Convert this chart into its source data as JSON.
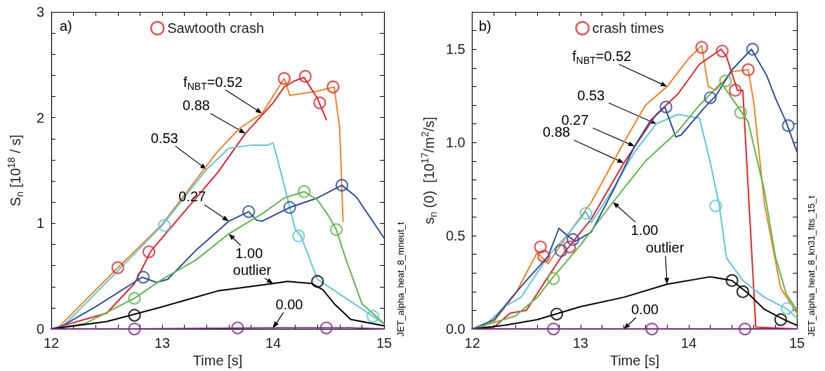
{
  "chart_data": [
    {
      "type": "line",
      "xlabel": "Time [s]",
      "ylabel": "S$_{n}$ [10$^{18}$ / s]",
      "xlim": [
        12,
        15
      ],
      "ylim": [
        0,
        3
      ],
      "xticks": [
        12,
        {
          "value": 12.2,
          "label": null
        },
        {
          "value": 12.4,
          "label": null
        },
        {
          "value": 12.6,
          "label": null
        },
        {
          "value": 12.8,
          "label": null
        },
        13,
        {
          "value": 13.2,
          "label": null
        },
        {
          "value": 13.4,
          "label": null
        },
        {
          "value": 13.6,
          "label": null
        },
        {
          "value": 13.8,
          "label": null
        },
        14,
        {
          "value": 14.2,
          "label": null
        },
        {
          "value": 14.4,
          "label": null
        },
        {
          "value": 14.6,
          "label": null
        },
        {
          "value": 14.8,
          "label": null
        },
        15
      ],
      "yticks": [
        0,
        {
          "value": 0.2,
          "label": null
        },
        {
          "value": 0.4,
          "label": null
        },
        {
          "value": 0.6,
          "label": null
        },
        {
          "value": 0.8,
          "label": null
        },
        1,
        {
          "value": 1.2,
          "label": null
        },
        {
          "value": 1.4,
          "label": null
        },
        {
          "value": 1.6,
          "label": null
        },
        {
          "value": 1.8,
          "label": null
        },
        2,
        {
          "value": 2.2,
          "label": null
        },
        {
          "value": 2.4,
          "label": null
        },
        {
          "value": 2.6,
          "label": null
        },
        {
          "value": 2.8,
          "label": null
        },
        3
      ],
      "legend": "top",
      "series": [
        {
          "type": "line",
          "color": "#f58220",
          "x": [
            12.05,
            12.6,
            13.0,
            13.5,
            13.7,
            13.9,
            14.1,
            14.15,
            14.4,
            14.55,
            14.6,
            14.63
          ],
          "values": [
            0,
            0.58,
            0.99,
            1.68,
            1.9,
            2.04,
            2.37,
            2.21,
            2.25,
            2.29,
            1.9,
            1.02
          ]
        },
        {
          "type": "line",
          "color": "#e8232a",
          "x": [
            12.0,
            12.5,
            12.75,
            12.9,
            13.2,
            13.5,
            13.75,
            14.0,
            14.1,
            14.2,
            14.28,
            14.4,
            14.48
          ],
          "values": [
            0,
            0.15,
            0.43,
            0.74,
            1.11,
            1.48,
            1.85,
            2.14,
            2.29,
            2.35,
            2.38,
            2.18,
            1.98
          ]
        },
        {
          "type": "line",
          "color": "#5bc8dc",
          "x": [
            12.1,
            12.6,
            13.0,
            13.4,
            13.6,
            13.8,
            13.95,
            14.0,
            14.1,
            14.2,
            14.25,
            14.4,
            14.7,
            14.9,
            15.0
          ],
          "values": [
            0.02,
            0.55,
            0.98,
            1.51,
            1.71,
            1.74,
            1.74,
            1.76,
            1.36,
            0.94,
            0.88,
            0.47,
            0.26,
            0.12,
            0.05
          ]
        },
        {
          "type": "line",
          "color": "#2b4ea2",
          "x": [
            12.05,
            12.4,
            12.82,
            12.95,
            13.05,
            13.3,
            13.6,
            13.78,
            13.85,
            13.9,
            14.15,
            14.4,
            14.62,
            14.75,
            15.0
          ],
          "values": [
            0,
            0.21,
            0.49,
            0.44,
            0.47,
            0.74,
            1.02,
            1.11,
            1.03,
            1.02,
            1.15,
            1.24,
            1.36,
            1.25,
            0.86
          ]
        },
        {
          "type": "line",
          "color": "#5cb947",
          "x": [
            12.0,
            12.3,
            12.75,
            13.0,
            13.3,
            13.6,
            13.9,
            14.1,
            14.28,
            14.4,
            14.5,
            14.57,
            14.65,
            14.8,
            15.0
          ],
          "values": [
            0,
            0.05,
            0.29,
            0.47,
            0.65,
            0.9,
            1.09,
            1.24,
            1.3,
            1.22,
            1.07,
            0.94,
            0.68,
            0.24,
            0.05
          ]
        },
        {
          "type": "line",
          "color": "#000000",
          "x": [
            12.0,
            12.5,
            12.75,
            13.0,
            13.5,
            14.0,
            14.13,
            14.35,
            14.45,
            14.55,
            14.7,
            15.0
          ],
          "values": [
            0,
            0.07,
            0.14,
            0.21,
            0.36,
            0.43,
            0.45,
            0.43,
            0.37,
            0.24,
            0.09,
            0.03
          ]
        },
        {
          "type": "line",
          "color": "#7b2a8a",
          "x": [
            12.0,
            12.7,
            14.0,
            14.7,
            15.0
          ],
          "values": [
            0,
            0,
            0.01,
            0.01,
            0
          ]
        },
        {
          "type": "scatter",
          "marker": "circle",
          "name": "Sawtooth crash",
          "color": "#e8232a",
          "x": [
            12.6,
            12.88,
            14.1,
            14.29,
            14.42,
            14.54
          ],
          "values": [
            0.58,
            0.73,
            2.37,
            2.39,
            2.14,
            2.29
          ]
        },
        {
          "type": "scatter",
          "marker": "circle",
          "color": "#5bc8dc",
          "x": [
            13.02,
            14.23,
            14.9
          ],
          "values": [
            0.98,
            0.88,
            0.12
          ]
        },
        {
          "type": "scatter",
          "marker": "circle",
          "color": "#2b4ea2",
          "x": [
            12.83,
            13.78,
            14.15,
            14.62
          ],
          "values": [
            0.49,
            1.11,
            1.15,
            1.36
          ]
        },
        {
          "type": "scatter",
          "marker": "circle",
          "color": "#5cb947",
          "x": [
            12.75,
            14.28,
            14.57
          ],
          "values": [
            0.29,
            1.3,
            0.94
          ]
        },
        {
          "type": "scatter",
          "marker": "circle",
          "color": "#000000",
          "x": [
            12.75,
            14.4
          ],
          "values": [
            0.13,
            0.45
          ]
        },
        {
          "type": "scatter",
          "marker": "circle",
          "color": "#7b2a8a",
          "x": [
            12.75,
            13.68,
            14.48
          ],
          "values": [
            0,
            0.01,
            0.01
          ]
        }
      ],
      "annotations": [
        "a)",
        "JET_alpha_heat_8_mneut_t",
        {
          "text": "f$_{NBT}$=0.52",
          "x": 13.9,
          "y": 2.04
        },
        {
          "text": "0.88",
          "x": 13.75,
          "y": 1.85
        },
        {
          "text": "0.53",
          "x": 13.4,
          "y": 1.51
        },
        {
          "text": "0.27",
          "x": 13.6,
          "y": 1.02
        },
        {
          "text": "1.00",
          "x": 13.6,
          "y": 0.9
        },
        {
          "text": "outlier",
          "x": 14.0,
          "y": 0.43
        },
        {
          "text": "0.00",
          "x": 14.0,
          "y": 0.01
        }
      ]
    },
    {
      "type": "line",
      "xlabel": "Time [s]",
      "ylabel": "s$_{n}$ (0)  [10$^{17}$/m$^{2}$/s]",
      "xlim": [
        12,
        15
      ],
      "ylim": [
        0,
        1.7
      ],
      "xticks": [
        12,
        {
          "value": 12.2,
          "label": null
        },
        {
          "value": 12.4,
          "label": null
        },
        {
          "value": 12.6,
          "label": null
        },
        {
          "value": 12.8,
          "label": null
        },
        13,
        {
          "value": 13.2,
          "label": null
        },
        {
          "value": 13.4,
          "label": null
        },
        {
          "value": 13.6,
          "label": null
        },
        {
          "value": 13.8,
          "label": null
        },
        14,
        {
          "value": 14.2,
          "label": null
        },
        {
          "value": 14.4,
          "label": null
        },
        {
          "value": 14.6,
          "label": null
        },
        {
          "value": 14.8,
          "label": null
        },
        15
      ],
      "yticks": [
        {
          "value": 0,
          "label": "0.0"
        },
        {
          "value": 0.1,
          "label": null
        },
        {
          "value": 0.2,
          "label": null
        },
        {
          "value": 0.3,
          "label": null
        },
        {
          "value": 0.4,
          "label": null
        },
        0.5,
        {
          "value": 0.6,
          "label": null
        },
        {
          "value": 0.7,
          "label": null
        },
        {
          "value": 0.8,
          "label": null
        },
        {
          "value": 0.9,
          "label": null
        },
        {
          "value": 1,
          "label": "1.0"
        },
        {
          "value": 1.1,
          "label": null
        },
        {
          "value": 1.2,
          "label": null
        },
        {
          "value": 1.3,
          "label": null
        },
        {
          "value": 1.4,
          "label": null
        },
        1.5,
        {
          "value": 1.6,
          "label": null
        },
        {
          "value": 1.7,
          "label": null
        }
      ],
      "legend": "top",
      "series": [
        {
          "type": "line",
          "color": "#f58220",
          "x": [
            12.0,
            12.2,
            12.4,
            12.6,
            12.7,
            12.9,
            13.1,
            13.4,
            13.6,
            13.8,
            14.0,
            14.12,
            14.18,
            14.25,
            14.4,
            14.55,
            14.6,
            14.7,
            14.85,
            15.0
          ],
          "values": [
            0,
            0.04,
            0.19,
            0.41,
            0.35,
            0.52,
            0.68,
            1.0,
            1.2,
            1.3,
            1.45,
            1.52,
            1.3,
            1.28,
            1.38,
            1.39,
            1.22,
            0.67,
            0.22,
            0.085
          ]
        },
        {
          "type": "line",
          "color": "#e8232a",
          "x": [
            12.0,
            12.2,
            12.35,
            12.5,
            12.7,
            12.85,
            13.1,
            13.4,
            13.7,
            13.9,
            14.1,
            14.3,
            14.35,
            14.45,
            14.5,
            14.62,
            15.0
          ],
          "values": [
            0,
            0.01,
            0.085,
            0.1,
            0.28,
            0.41,
            0.59,
            0.89,
            1.15,
            1.26,
            1.42,
            1.5,
            1.46,
            1.28,
            1.28,
            0.01,
            0
          ]
        },
        {
          "type": "line",
          "color": "#5bc8dc",
          "x": [
            12.1,
            12.3,
            12.45,
            12.7,
            12.9,
            13.05,
            13.1,
            13.3,
            13.5,
            13.7,
            13.9,
            14.1,
            14.2,
            14.28,
            14.35,
            14.5,
            14.7,
            14.9,
            15.0
          ],
          "values": [
            0.01,
            0.12,
            0.17,
            0.39,
            0.52,
            0.63,
            0.57,
            0.75,
            0.95,
            1.1,
            1.15,
            1.13,
            0.89,
            0.67,
            0.38,
            0.26,
            0.17,
            0.11,
            0.06
          ]
        },
        {
          "type": "line",
          "color": "#2b4ea2",
          "x": [
            12.0,
            12.2,
            12.35,
            12.5,
            12.7,
            12.8,
            12.88,
            12.95,
            13.1,
            13.3,
            13.5,
            13.65,
            13.78,
            13.88,
            13.93,
            14.15,
            14.25,
            14.4,
            14.58,
            14.72,
            14.8,
            14.9,
            15.0
          ],
          "values": [
            0,
            0.05,
            0.16,
            0.26,
            0.39,
            0.54,
            0.5,
            0.47,
            0.52,
            0.74,
            0.98,
            1.12,
            1.19,
            1.03,
            1.04,
            1.19,
            1.25,
            1.39,
            1.5,
            1.36,
            1.24,
            1.11,
            0.95
          ]
        },
        {
          "type": "line",
          "color": "#5cb947",
          "x": [
            12.0,
            12.4,
            12.6,
            12.75,
            13.0,
            13.3,
            13.6,
            13.9,
            14.1,
            14.3,
            14.42,
            14.55,
            14.7,
            14.8,
            14.9,
            15.0
          ],
          "values": [
            0,
            0.07,
            0.17,
            0.28,
            0.45,
            0.68,
            0.9,
            1.06,
            1.2,
            1.32,
            1.22,
            1.11,
            0.74,
            0.39,
            0.19,
            0.1
          ]
        },
        {
          "type": "line",
          "color": "#000000",
          "x": [
            12.0,
            12.3,
            12.6,
            12.8,
            13.0,
            13.4,
            13.8,
            14.2,
            14.4,
            14.55,
            14.7,
            14.9,
            15.0
          ],
          "values": [
            0,
            0.02,
            0.05,
            0.085,
            0.12,
            0.17,
            0.24,
            0.28,
            0.26,
            0.19,
            0.105,
            0.045,
            0.02
          ]
        },
        {
          "type": "line",
          "color": "#7b2a8a",
          "x": [
            12.0,
            15.0
          ],
          "values": [
            0,
            0
          ]
        },
        {
          "type": "scatter",
          "marker": "circle",
          "name": "crash times",
          "color": "#e8232a",
          "x": [
            12.63,
            12.66,
            12.9,
            14.12,
            14.31,
            14.43,
            14.55
          ],
          "values": [
            0.44,
            0.39,
            0.44,
            1.51,
            1.49,
            1.28,
            1.39
          ]
        },
        {
          "type": "scatter",
          "marker": "circle",
          "color": "#2b4ea2",
          "x": [
            12.82,
            12.93,
            13.79,
            14.2,
            14.59,
            14.92
          ],
          "values": [
            0.42,
            0.48,
            1.19,
            1.24,
            1.5,
            1.09
          ]
        },
        {
          "type": "scatter",
          "marker": "circle",
          "color": "#5bc8dc",
          "x": [
            13.05,
            14.25,
            14.91
          ],
          "values": [
            0.62,
            0.66,
            0.11
          ]
        },
        {
          "type": "scatter",
          "marker": "circle",
          "color": "#5cb947",
          "x": [
            12.75,
            14.34,
            14.48
          ],
          "values": [
            0.27,
            1.33,
            1.16
          ]
        },
        {
          "type": "scatter",
          "marker": "circle",
          "color": "#000000",
          "x": [
            12.78,
            14.4,
            14.5,
            14.85
          ],
          "values": [
            0.08,
            0.26,
            0.2,
            0.05
          ]
        },
        {
          "type": "scatter",
          "marker": "circle",
          "color": "#7b2a8a",
          "x": [
            12.75,
            13.66,
            14.52
          ],
          "values": [
            0,
            0,
            0
          ]
        }
      ],
      "annotations": [
        "b)",
        "JET_alpha_heat_8_kn31_fits_15_t",
        {
          "text": "f$_{NBT}$=0.52",
          "x": 13.8,
          "y": 1.3
        },
        {
          "text": "0.53",
          "x": 13.7,
          "y": 1.1
        },
        {
          "text": "0.27",
          "x": 13.5,
          "y": 0.98
        },
        {
          "text": "0.88",
          "x": 13.4,
          "y": 0.89
        },
        {
          "text": "1.00",
          "x": 13.3,
          "y": 0.68
        },
        {
          "text": "outlier",
          "x": 13.8,
          "y": 0.24
        },
        {
          "text": "0.00",
          "x": 13.4,
          "y": 0.0
        }
      ]
    }
  ]
}
